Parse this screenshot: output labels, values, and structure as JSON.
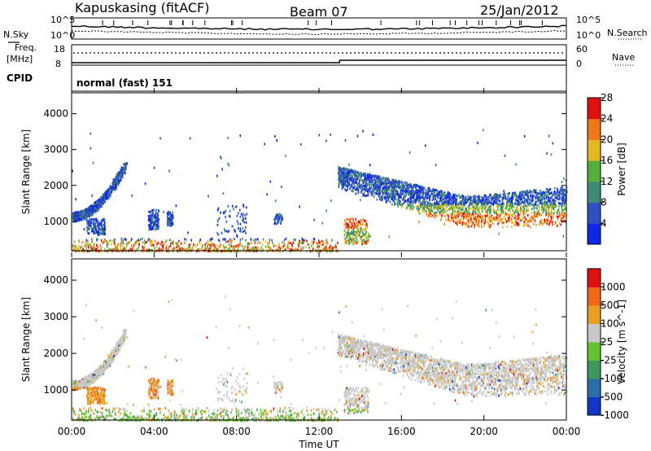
{
  "header": {
    "station": "Kapuskasing (fitACF)",
    "beam": "Beam 07",
    "date": "25/Jan/2012"
  },
  "noise_panel": {
    "left_label": "N.Sky",
    "right_label": "N.Search",
    "left_ticks": [
      "10^5",
      "10^0"
    ],
    "right_ticks": [
      "10^5",
      "10^0"
    ]
  },
  "freq_panel": {
    "left_label_1": "Freq.",
    "left_label_2": "[MHz]",
    "right_label": "Nave",
    "left_ticks": [
      "18",
      "8"
    ],
    "right_ticks": [
      "60",
      "0"
    ]
  },
  "cpid": {
    "label": "CPID",
    "mode": "normal (fast) 151"
  },
  "chart_data": [
    {
      "type": "heatmap",
      "title": "",
      "ylabel": "Slant Range [km]",
      "xlabel": "",
      "y_ticks": [
        "1000",
        "2000",
        "3000",
        "4000"
      ],
      "ylim": [
        180,
        4580
      ],
      "colorbar": {
        "label": "Power [dB]",
        "ticks": [
          "4",
          "8",
          "12",
          "16",
          "20",
          "24",
          "28"
        ],
        "colors": [
          "#1028e6",
          "#3050c0",
          "#3f8a74",
          "#52b038",
          "#e4b820",
          "#f07818",
          "#e01010"
        ]
      },
      "features": [
        {
          "name": "arc-left",
          "x_hours": [
            0.0,
            2.6
          ],
          "range_km": [
            1100,
            2700
          ]
        },
        {
          "name": "e-region-low",
          "x_hours": [
            0.0,
            12.9
          ],
          "range_km": [
            200,
            500
          ]
        },
        {
          "name": "band-evening",
          "x_hours": [
            12.9,
            24.0
          ],
          "range_km": [
            900,
            2100
          ]
        }
      ]
    },
    {
      "type": "heatmap",
      "title": "",
      "ylabel": "Slant Range [km]",
      "xlabel": "Time UT",
      "x_ticks": [
        "00:00",
        "04:00",
        "08:00",
        "12:00",
        "16:00",
        "20:00",
        "00:00"
      ],
      "y_ticks": [
        "1000",
        "2000",
        "3000",
        "4000"
      ],
      "ylim": [
        180,
        4580
      ],
      "colorbar": {
        "label": "Velocity [m s^-1]",
        "ticks": [
          "1000",
          "500",
          "100",
          "25",
          "-25",
          "-100",
          "-500",
          "-1000"
        ],
        "colors": [
          "#1035c8",
          "#2c6ea8",
          "#3d9a5a",
          "#63c230",
          "#c8c8c8",
          "#e8a020",
          "#f06818",
          "#e01010"
        ]
      }
    }
  ]
}
